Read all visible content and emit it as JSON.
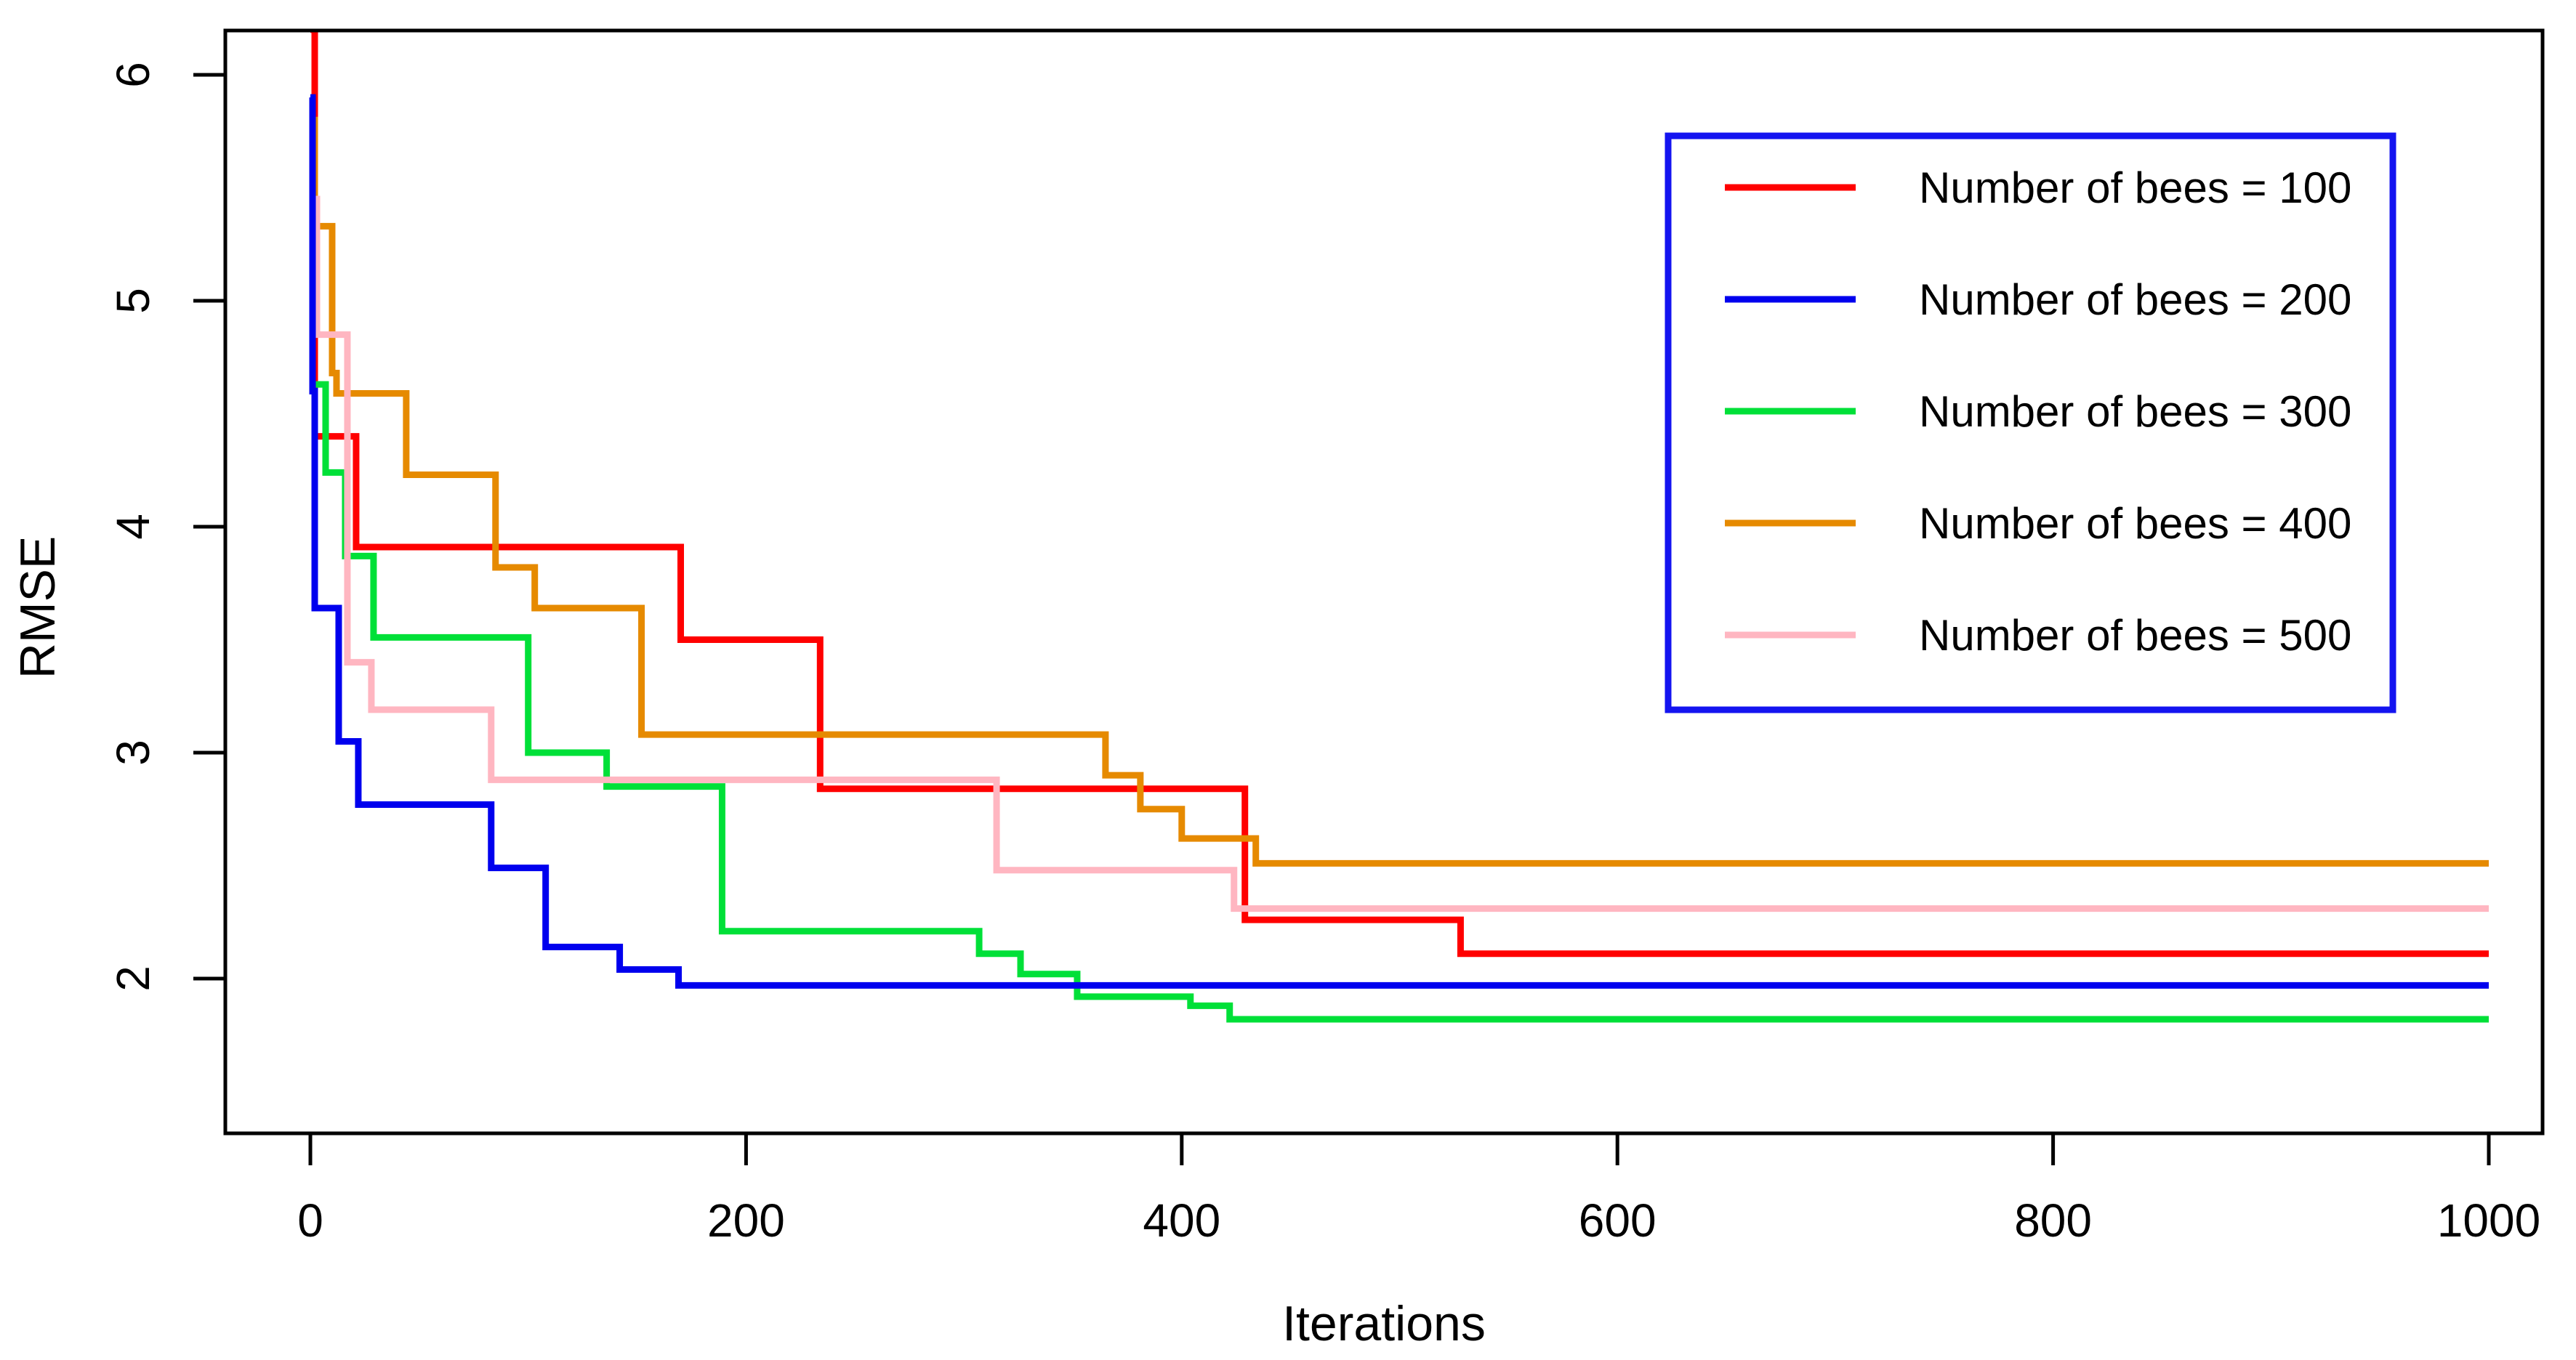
{
  "chart_data": {
    "type": "line",
    "subtype": "step",
    "title": "",
    "xlabel": "Iterations",
    "ylabel": "RMSE",
    "xlim": [
      0,
      1000
    ],
    "ylim": [
      1.4,
      6.2
    ],
    "x_ticks": [
      0,
      200,
      400,
      600,
      800,
      1000
    ],
    "y_ticks": [
      2,
      3,
      4,
      5,
      6
    ],
    "grid": false,
    "legend_position": "top-right",
    "legend_border_color": "#1414f0",
    "axis_color": "#000000",
    "background_color": "#ffffff",
    "series": [
      {
        "name": "Number of bees = 100",
        "color": "#ff0000",
        "points": [
          [
            0,
            6.2
          ],
          [
            2,
            4.4
          ],
          [
            21,
            3.91
          ],
          [
            170,
            3.5
          ],
          [
            234,
            2.84
          ],
          [
            429,
            2.26
          ],
          [
            528,
            2.11
          ],
          [
            1000,
            2.11
          ]
        ]
      },
      {
        "name": "Number of bees = 200",
        "color": "#0000ee",
        "points": [
          [
            0,
            5.9
          ],
          [
            1,
            4.6
          ],
          [
            2,
            3.64
          ],
          [
            13,
            3.05
          ],
          [
            22,
            2.77
          ],
          [
            83,
            2.49
          ],
          [
            108,
            2.14
          ],
          [
            142,
            2.04
          ],
          [
            169,
            1.97
          ],
          [
            1000,
            1.97
          ]
        ]
      },
      {
        "name": "Number of bees = 300",
        "color": "#00e038",
        "points": [
          [
            0,
            5.6
          ],
          [
            1,
            4.63
          ],
          [
            7,
            4.24
          ],
          [
            16,
            3.87
          ],
          [
            29,
            3.51
          ],
          [
            100,
            3.0
          ],
          [
            136,
            2.85
          ],
          [
            189,
            2.21
          ],
          [
            307,
            2.11
          ],
          [
            326,
            2.02
          ],
          [
            352,
            1.92
          ],
          [
            404,
            1.88
          ],
          [
            422,
            1.82
          ],
          [
            1000,
            1.82
          ]
        ]
      },
      {
        "name": "Number of bees = 400",
        "color": "#e68a00",
        "points": [
          [
            0,
            5.8
          ],
          [
            2,
            5.33
          ],
          [
            10,
            4.68
          ],
          [
            12,
            4.59
          ],
          [
            44,
            4.23
          ],
          [
            85,
            3.82
          ],
          [
            103,
            3.64
          ],
          [
            152,
            3.08
          ],
          [
            365,
            2.9
          ],
          [
            381,
            2.75
          ],
          [
            400,
            2.62
          ],
          [
            434,
            2.51
          ],
          [
            1000,
            2.51
          ]
        ]
      },
      {
        "name": "Number of bees = 500",
        "color": "#ffb6c1",
        "points": [
          [
            0,
            5.45
          ],
          [
            3,
            4.85
          ],
          [
            17,
            3.4
          ],
          [
            28,
            3.19
          ],
          [
            83,
            2.88
          ],
          [
            315,
            2.48
          ],
          [
            424,
            2.31
          ],
          [
            1000,
            2.31
          ]
        ]
      }
    ],
    "draw_order": [
      0,
      2,
      3,
      4,
      1
    ]
  }
}
